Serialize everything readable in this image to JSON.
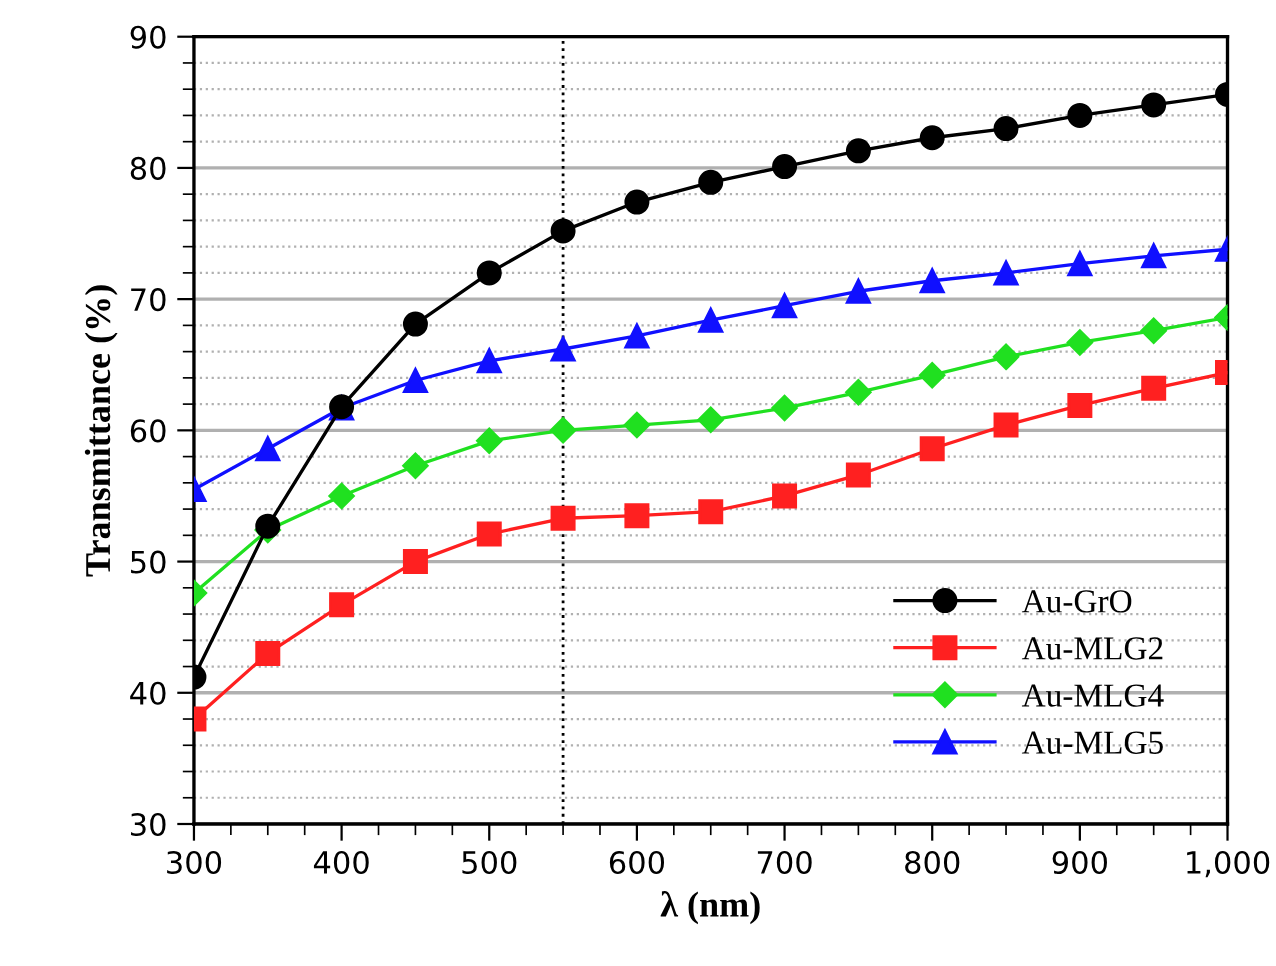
{
  "chart_data": {
    "type": "line",
    "xlabel": "λ (nm)",
    "ylabel": "Transmittance (%)",
    "x": [
      300,
      350,
      400,
      450,
      500,
      550,
      600,
      650,
      700,
      750,
      800,
      850,
      900,
      950,
      1000
    ],
    "series": [
      {
        "name": "Au-GrO",
        "color": "#000000",
        "marker": "circle",
        "values": [
          41.2,
          52.7,
          61.8,
          68.1,
          72.0,
          75.2,
          77.4,
          78.9,
          80.1,
          81.3,
          82.3,
          83.0,
          84.0,
          84.8,
          85.6
        ]
      },
      {
        "name": "Au-MLG2",
        "color": "#ff2020",
        "marker": "square",
        "values": [
          38.0,
          43.0,
          46.7,
          50.0,
          52.1,
          53.3,
          53.5,
          53.8,
          55.0,
          56.6,
          58.6,
          60.4,
          61.9,
          63.2,
          64.4
        ]
      },
      {
        "name": "Au-MLG4",
        "color": "#20e020",
        "marker": "diamond",
        "values": [
          47.6,
          52.4,
          55.0,
          57.3,
          59.2,
          60.0,
          60.4,
          60.8,
          61.7,
          62.9,
          64.2,
          65.6,
          66.7,
          67.6,
          68.6
        ]
      },
      {
        "name": "Au-MLG5",
        "color": "#1010ff",
        "marker": "triangle",
        "values": [
          55.5,
          58.6,
          61.7,
          63.8,
          65.3,
          66.2,
          67.2,
          68.4,
          69.5,
          70.6,
          71.4,
          72.0,
          72.7,
          73.3,
          73.8
        ]
      }
    ],
    "xlim": [
      300,
      1000
    ],
    "ylim": [
      30,
      90
    ],
    "xticks": [
      300,
      400,
      500,
      600,
      700,
      800,
      900,
      {
        "value": 1000,
        "label": "1,000"
      }
    ],
    "yticks": [
      30,
      40,
      50,
      60,
      70,
      80,
      90
    ],
    "ref_lines": [
      {
        "axis": "x",
        "value": 550,
        "line_style": "dotted",
        "color": "#000000"
      }
    ],
    "grid": "y",
    "legend": "bottom right",
    "line_style": "solid"
  }
}
